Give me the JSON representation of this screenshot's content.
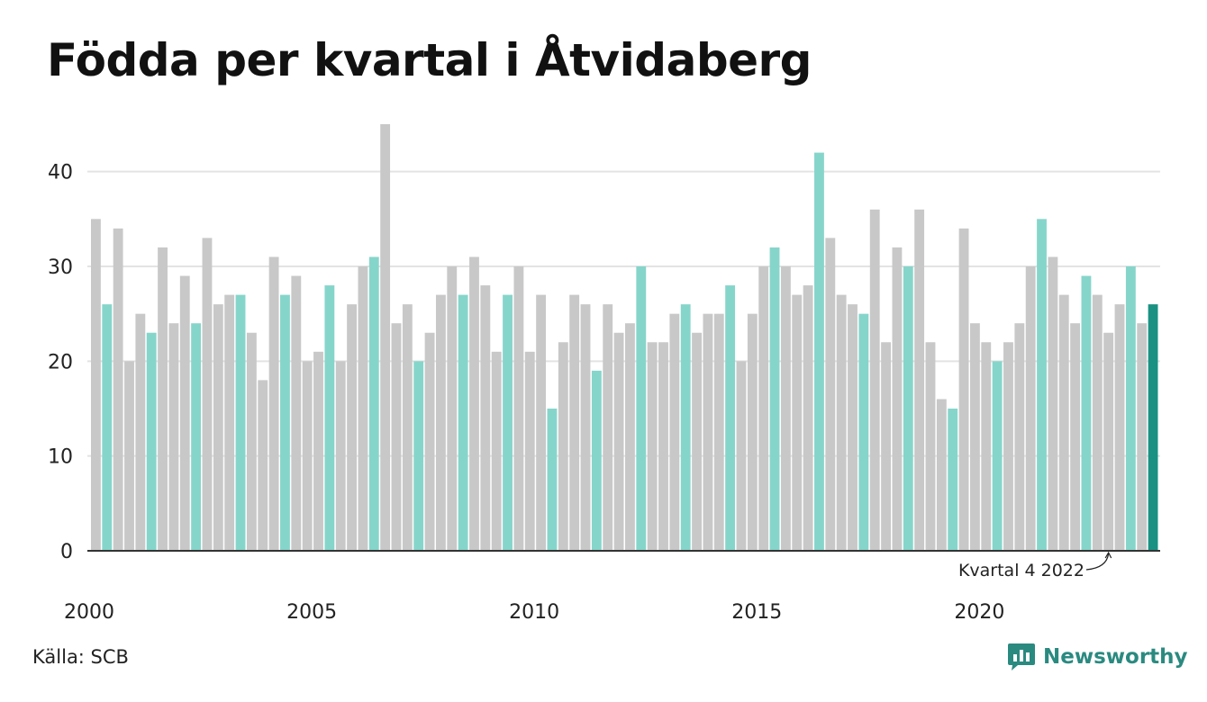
{
  "title": "Födda per kvartal i Åtvidaberg",
  "source": "Källa: SCB",
  "brand": {
    "name": "Newsworthy",
    "icon": "newsworthy-logo-icon",
    "color": "#2a8a80"
  },
  "colors": {
    "bar": "#c8c8c8",
    "highlight": "#86d5cb",
    "latest": "#1a9183",
    "grid": "#e3e3e3",
    "axis": "#333333"
  },
  "chart_data": {
    "type": "bar",
    "title": "Födda per kvartal i Åtvidaberg",
    "xlabel": "",
    "ylabel": "",
    "ylim": [
      0,
      45
    ],
    "yticks": [
      0,
      10,
      20,
      30,
      40
    ],
    "xticks": [
      "2000",
      "2005",
      "2010",
      "2015",
      "2020"
    ],
    "grid": true,
    "start_year": 2000,
    "highlight_quarter": 1,
    "annotation": {
      "text": "Kvartal 4 2022",
      "index": 91
    },
    "values": [
      35,
      26,
      34,
      20,
      25,
      23,
      32,
      24,
      29,
      24,
      33,
      26,
      27,
      27,
      23,
      18,
      31,
      27,
      29,
      20,
      21,
      28,
      20,
      26,
      30,
      31,
      45,
      24,
      26,
      20,
      23,
      27,
      30,
      27,
      31,
      28,
      21,
      27,
      30,
      21,
      27,
      15,
      22,
      27,
      26,
      19,
      26,
      23,
      24,
      30,
      22,
      22,
      25,
      26,
      23,
      25,
      25,
      28,
      20,
      25,
      30,
      32,
      30,
      27,
      28,
      42,
      33,
      27,
      26,
      25,
      36,
      22,
      32,
      30,
      36,
      22,
      16,
      15,
      34,
      24,
      22,
      20,
      22,
      24,
      30,
      35,
      31,
      27,
      24,
      29,
      27,
      23,
      26,
      30,
      24,
      26
    ]
  }
}
